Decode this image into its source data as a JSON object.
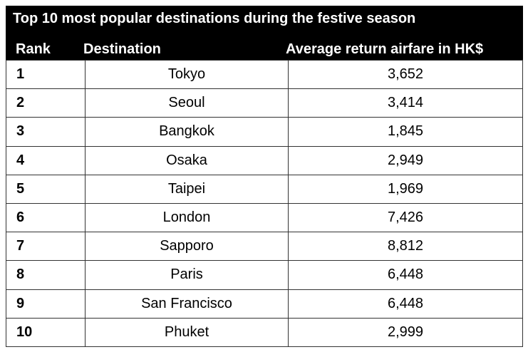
{
  "header": {
    "title": "Top 10 most popular destinations during the festive season",
    "columns": {
      "rank": "Rank",
      "destination": "Destination",
      "fare": "Average return airfare in HK$"
    }
  },
  "rows": [
    {
      "rank": "1",
      "destination": "Tokyo",
      "fare": "3,652"
    },
    {
      "rank": "2",
      "destination": "Seoul",
      "fare": "3,414"
    },
    {
      "rank": "3",
      "destination": "Bangkok",
      "fare": "1,845"
    },
    {
      "rank": "4",
      "destination": "Osaka",
      "fare": "2,949"
    },
    {
      "rank": "5",
      "destination": "Taipei",
      "fare": "1,969"
    },
    {
      "rank": "6",
      "destination": "London",
      "fare": "7,426"
    },
    {
      "rank": "7",
      "destination": "Sapporo",
      "fare": "8,812"
    },
    {
      "rank": "8",
      "destination": "Paris",
      "fare": "6,448"
    },
    {
      "rank": "9",
      "destination": "San Francisco",
      "fare": "6,448"
    },
    {
      "rank": "10",
      "destination": "Phuket",
      "fare": "2,999"
    }
  ]
}
